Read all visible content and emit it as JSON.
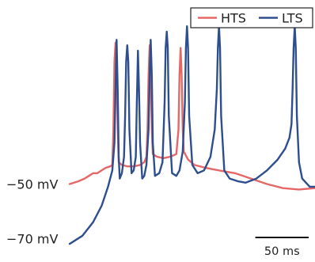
{
  "chart_data": {
    "type": "line",
    "title": "",
    "xlabel": "",
    "ylabel": "",
    "y_unit": "mV",
    "y_ticks": [
      {
        "value": -50,
        "label": "−50 mV"
      },
      {
        "value": -70,
        "label": "−70 mV"
      }
    ],
    "ylim": [
      -74,
      6
    ],
    "xlim": [
      0,
      230
    ],
    "grid": false,
    "axes_visible": false,
    "legend": {
      "placement": "top-right",
      "boxed": true,
      "entries": [
        "HTS",
        "LTS"
      ]
    },
    "scale_bar": {
      "length_ms": 50,
      "label": "50 ms"
    },
    "series": [
      {
        "name": "HTS",
        "color": "#e56766",
        "points": [
          [
            0,
            -50
          ],
          [
            8,
            -49
          ],
          [
            14,
            -48
          ],
          [
            18,
            -47
          ],
          [
            22,
            -46
          ],
          [
            26,
            -46
          ],
          [
            30,
            -45
          ],
          [
            34,
            -44
          ],
          [
            38,
            -43.5
          ],
          [
            40,
            -43
          ],
          [
            41,
            -30
          ],
          [
            42,
            -5
          ],
          [
            43,
            2
          ],
          [
            44,
            -5
          ],
          [
            45,
            -30
          ],
          [
            46,
            -42
          ],
          [
            49,
            -43
          ],
          [
            54,
            -43.5
          ],
          [
            60,
            -43.5
          ],
          [
            66,
            -43
          ],
          [
            70,
            -42
          ],
          [
            72,
            -40
          ],
          [
            73,
            -30
          ],
          [
            74,
            -10
          ],
          [
            75,
            1
          ],
          [
            76,
            -10
          ],
          [
            77,
            -30
          ],
          [
            78,
            -39
          ],
          [
            82,
            -40
          ],
          [
            88,
            -40.5
          ],
          [
            94,
            -40
          ],
          [
            100,
            -39
          ],
          [
            102,
            -30
          ],
          [
            103,
            -10
          ],
          [
            104,
            0
          ],
          [
            105,
            -10
          ],
          [
            106,
            -30
          ],
          [
            107,
            -38
          ],
          [
            111,
            -41
          ],
          [
            117,
            -43
          ],
          [
            127,
            -44
          ],
          [
            140,
            -45
          ],
          [
            155,
            -46
          ],
          [
            170,
            -48
          ],
          [
            185,
            -50
          ],
          [
            200,
            -51.5
          ],
          [
            215,
            -52
          ],
          [
            230,
            -51.5
          ]
        ]
      },
      {
        "name": "LTS",
        "color": "#2e4f8e",
        "points": [
          [
            0,
            -72
          ],
          [
            12,
            -69
          ],
          [
            22,
            -64
          ],
          [
            30,
            -58
          ],
          [
            36,
            -51
          ],
          [
            40,
            -45
          ],
          [
            42,
            -35
          ],
          [
            43,
            -15
          ],
          [
            44,
            3
          ],
          [
            45,
            -15
          ],
          [
            46,
            -40
          ],
          [
            47,
            -48
          ],
          [
            49,
            -46
          ],
          [
            51,
            -40
          ],
          [
            52,
            -25
          ],
          [
            53,
            -5
          ],
          [
            54,
            1
          ],
          [
            55,
            -5
          ],
          [
            56,
            -30
          ],
          [
            58,
            -46
          ],
          [
            60,
            -45
          ],
          [
            62,
            -40
          ],
          [
            63,
            -20
          ],
          [
            64,
            -1
          ],
          [
            65,
            -15
          ],
          [
            66,
            -35
          ],
          [
            68,
            -48
          ],
          [
            70,
            -47
          ],
          [
            72,
            -43
          ],
          [
            74,
            -30
          ],
          [
            75,
            -10
          ],
          [
            76,
            3
          ],
          [
            77,
            -10
          ],
          [
            78,
            -35
          ],
          [
            80,
            -47
          ],
          [
            84,
            -46
          ],
          [
            87,
            -42
          ],
          [
            89,
            -20
          ],
          [
            90,
            0
          ],
          [
            91,
            6
          ],
          [
            92,
            0
          ],
          [
            93,
            -25
          ],
          [
            96,
            -46
          ],
          [
            100,
            -47
          ],
          [
            103,
            -45
          ],
          [
            106,
            -38
          ],
          [
            108,
            -20
          ],
          [
            109,
            0
          ],
          [
            110,
            8
          ],
          [
            111,
            0
          ],
          [
            112,
            -25
          ],
          [
            115,
            -43
          ],
          [
            120,
            -46
          ],
          [
            126,
            -45
          ],
          [
            132,
            -40
          ],
          [
            136,
            -30
          ],
          [
            138,
            -15
          ],
          [
            139,
            0
          ],
          [
            140,
            8
          ],
          [
            141,
            0
          ],
          [
            142,
            -25
          ],
          [
            145,
            -45
          ],
          [
            150,
            -48
          ],
          [
            158,
            -49
          ],
          [
            165,
            -49.5
          ],
          [
            175,
            -48
          ],
          [
            185,
            -45
          ],
          [
            195,
            -41
          ],
          [
            202,
            -37
          ],
          [
            206,
            -33
          ],
          [
            208,
            -28
          ],
          [
            209,
            -15
          ],
          [
            210,
            0
          ],
          [
            211,
            8
          ],
          [
            212,
            0
          ],
          [
            213,
            -25
          ],
          [
            215,
            -42
          ],
          [
            218,
            -48
          ],
          [
            225,
            -51
          ],
          [
            230,
            -51
          ]
        ]
      }
    ]
  }
}
